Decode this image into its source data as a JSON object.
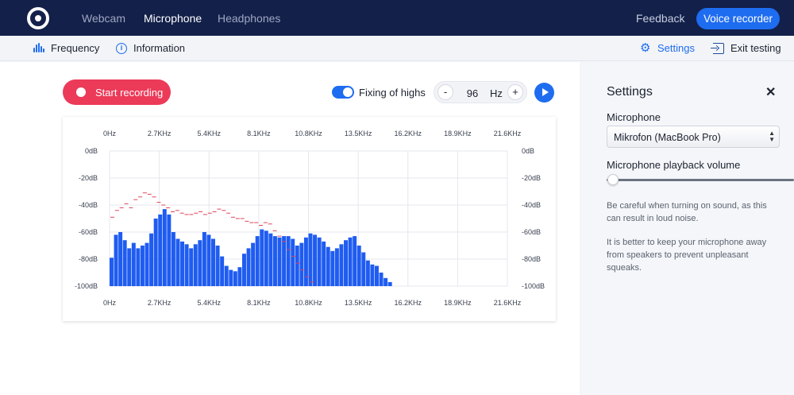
{
  "nav": {
    "links": [
      "Webcam",
      "Microphone",
      "Headphones"
    ],
    "active": "Microphone",
    "feedback": "Feedback",
    "voice_recorder": "Voice recorder"
  },
  "subnav": {
    "frequency": "Frequency",
    "information": "Information",
    "settings": "Settings",
    "exit": "Exit testing"
  },
  "controls": {
    "start_recording": "Start recording",
    "fixing_highs_label": "Fixing of highs",
    "fixing_highs_on": true,
    "stepper_minus": "-",
    "stepper_plus": "+",
    "stepper_value": "96",
    "stepper_unit": "Hz"
  },
  "colors": {
    "nav_bg": "#13204a",
    "accent": "#1e6cf0",
    "record": "#ec3a59",
    "bar": "#1f5cf0",
    "peak": "#e0455c"
  },
  "chart_data": {
    "type": "bar",
    "x_ticks": [
      "0Hz",
      "2.7KHz",
      "5.4KHz",
      "8.1KHz",
      "10.8KHz",
      "13.5KHz",
      "16.2KHz",
      "18.9KHz",
      "21.6KHz"
    ],
    "y_ticks": [
      "0dB",
      "-20dB",
      "-40dB",
      "-60dB",
      "-80dB",
      "-100dB"
    ],
    "ylim": [
      -100,
      0
    ],
    "xlim": [
      0,
      21600
    ],
    "grid": true,
    "bar_width_hz": 240,
    "values_db": [
      -79,
      -62,
      -60,
      -66,
      -72,
      -68,
      -72,
      -70,
      -68,
      -61,
      -50,
      -47,
      -43,
      -47,
      -60,
      -65,
      -67,
      -69,
      -72,
      -69,
      -66,
      -60,
      -62,
      -65,
      -70,
      -78,
      -85,
      -88,
      -89,
      -86,
      -76,
      -72,
      -68,
      -63,
      -58,
      -59,
      -61,
      -63,
      -64,
      -63,
      -63,
      -65,
      -70,
      -68,
      -64,
      -61,
      -62,
      -64,
      -67,
      -71,
      -74,
      -72,
      -69,
      -66,
      -64,
      -63,
      -70,
      -75,
      -81,
      -84,
      -85,
      -90,
      -94,
      -97
    ],
    "peaks_db": [
      -49,
      -44,
      -42,
      -39,
      -42,
      -36,
      -34,
      -31,
      -32,
      -34,
      -38,
      -40,
      -42,
      -45,
      -44,
      -46,
      -47,
      -47,
      -46,
      -45,
      -47,
      -46,
      -45,
      -43,
      -44,
      -46,
      -49,
      -50,
      -50,
      -52,
      -53,
      -53,
      -55,
      -53,
      -54,
      -59,
      -63,
      -67,
      -73,
      -78,
      -83,
      -88,
      -93,
      -97
    ]
  },
  "panel": {
    "title": "Settings",
    "close": "✕",
    "mic_label": "Microphone",
    "mic_value": "Mikrofon (MacBook Pro)",
    "volume_label": "Microphone playback volume",
    "volume_level": 0,
    "note1": "Be careful when turning on sound, as this can result in loud noise.",
    "note2": "It is better to keep your microphone away from speakers to prevent unpleasant squeaks."
  }
}
